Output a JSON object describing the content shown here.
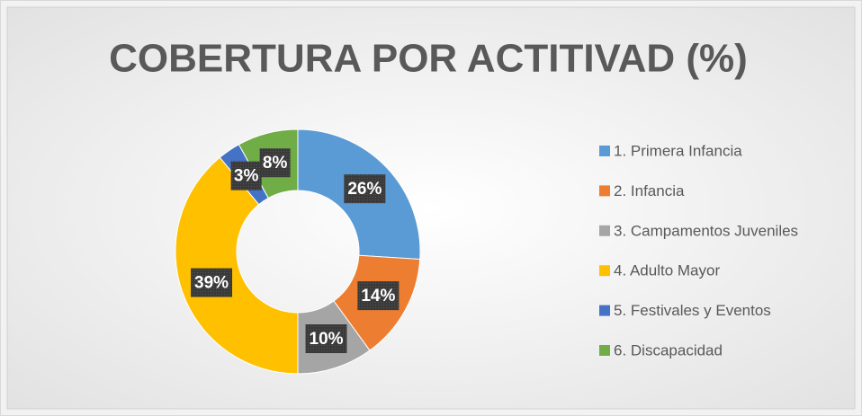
{
  "chart_data": {
    "type": "donut",
    "title": "COBERTURA POR ACTITIVAD (%)",
    "categories": [
      "1. Primera Infancia",
      "2. Infancia",
      "3. Campamentos Juveniles",
      "4. Adulto Mayor",
      "5. Festivales y Eventos",
      "6. Discapacidad"
    ],
    "values": [
      26,
      14,
      10,
      39,
      3,
      8
    ],
    "value_labels": [
      "26%",
      "14%",
      "10%",
      "39%",
      "3%",
      "8%"
    ],
    "colors": [
      "#5B9BD5",
      "#ED7D31",
      "#A5A5A5",
      "#FFC000",
      "#4472C4",
      "#70AD47"
    ],
    "legend": "right"
  }
}
